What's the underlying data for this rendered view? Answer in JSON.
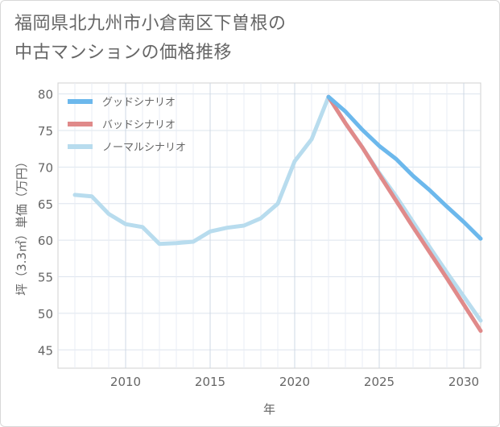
{
  "title": {
    "line1": "福岡県北九州市小倉南区下曽根の",
    "line2": "中古マンションの価格推移"
  },
  "chart_data": {
    "type": "line",
    "xlabel": "年",
    "ylabel": "坪（3.3㎡）単価（万円）",
    "xlim": [
      2006,
      2031
    ],
    "ylim": [
      42.5,
      81.5
    ],
    "xticks": [
      2010,
      2015,
      2020,
      2025,
      2030
    ],
    "yticks": [
      45,
      50,
      55,
      60,
      65,
      70,
      75,
      80
    ],
    "grid": true,
    "legend_position": "top-left",
    "series": [
      {
        "name": "グッドシナリオ",
        "color": "#6cb8ec",
        "x": [
          2022,
          2023,
          2024,
          2025,
          2026,
          2027,
          2028,
          2029,
          2030,
          2031
        ],
        "values": [
          79.6,
          77.6,
          75.1,
          72.9,
          71.1,
          68.8,
          66.8,
          64.6,
          62.5,
          60.2
        ]
      },
      {
        "name": "バッドシナリオ",
        "color": "#e08a8a",
        "x": [
          2022,
          2023,
          2024,
          2025,
          2026,
          2027,
          2028,
          2029,
          2030,
          2031
        ],
        "values": [
          79.6,
          76.0,
          72.7,
          69.0,
          65.4,
          61.8,
          58.3,
          54.8,
          51.2,
          47.6
        ]
      },
      {
        "name": "ノーマルシナリオ",
        "color": "#b8dcee",
        "x": [
          2007,
          2008,
          2009,
          2010,
          2011,
          2012,
          2013,
          2014,
          2015,
          2016,
          2017,
          2018,
          2019,
          2020,
          2021,
          2022,
          2023,
          2024,
          2025,
          2026,
          2027,
          2028,
          2029,
          2030,
          2031
        ],
        "values": [
          66.2,
          66.0,
          63.6,
          62.2,
          61.8,
          59.5,
          59.6,
          59.8,
          61.2,
          61.7,
          62.0,
          63.0,
          65.0,
          70.8,
          73.8,
          79.6,
          76.0,
          72.7,
          69.2,
          66.0,
          62.5,
          59.0,
          55.6,
          52.3,
          49.0
        ]
      }
    ]
  }
}
